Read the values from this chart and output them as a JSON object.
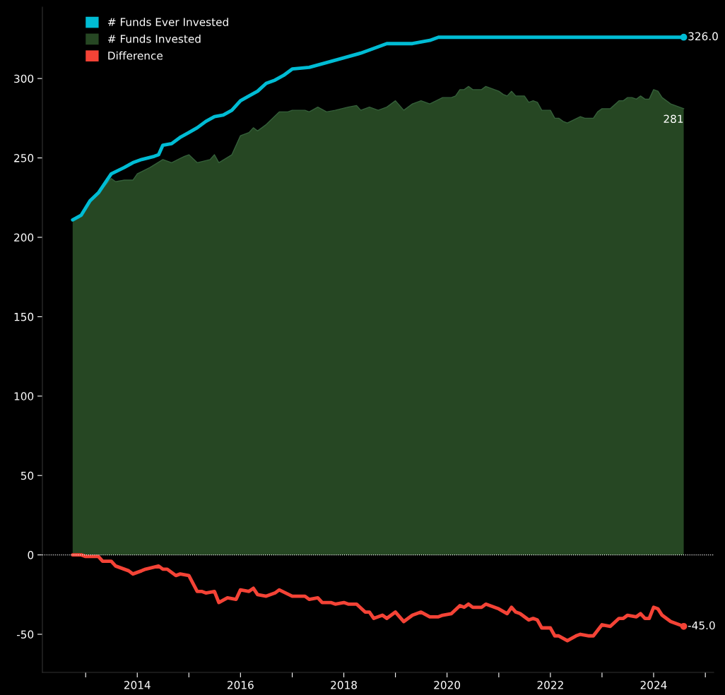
{
  "chart_data": {
    "type": "line",
    "legend": "top left",
    "grid": false,
    "marker": "none",
    "line_style": "solid",
    "xlim": [
      "2012-03",
      "2025-03"
    ],
    "xticks": [
      {
        "value": "2013",
        "label": null
      },
      {
        "value": "2014",
        "label": "2014"
      },
      {
        "value": "2015",
        "label": null
      },
      {
        "value": "2016",
        "label": "2016"
      },
      {
        "value": "2017",
        "label": null
      },
      {
        "value": "2018",
        "label": "2018"
      },
      {
        "value": "2019",
        "label": null
      },
      {
        "value": "2020",
        "label": "2020"
      },
      {
        "value": "2021",
        "label": null
      },
      {
        "value": "2022",
        "label": "2022"
      },
      {
        "value": "2023",
        "label": null
      },
      {
        "value": "2024",
        "label": "2024"
      },
      {
        "value": "2025",
        "label": null
      }
    ],
    "ylim": [
      -74,
      345
    ],
    "yticks": [
      -50,
      0,
      50,
      100,
      150,
      200,
      250,
      300
    ],
    "ref_lines": [
      {
        "axis": "y",
        "value": 0,
        "label": null,
        "color": "#ffffff",
        "line_style": "dotted"
      }
    ],
    "series": [
      {
        "name": "# Funds Invested",
        "type": "area",
        "color": "#264723",
        "x": [
          "2012-10",
          "2012-12",
          "2013-02",
          "2013-04",
          "2013-06",
          "2013-07",
          "2013-08",
          "2013-10",
          "2013-12",
          "2014-01",
          "2014-04",
          "2014-07",
          "2014-09",
          "2014-12",
          "2015-01",
          "2015-03",
          "2015-06",
          "2015-07",
          "2015-08",
          "2015-11",
          "2016-01",
          "2016-03",
          "2016-04",
          "2016-05",
          "2016-07",
          "2016-10",
          "2016-12",
          "2017-01",
          "2017-04",
          "2017-05",
          "2017-07",
          "2017-09",
          "2017-11",
          "2018-02",
          "2018-04",
          "2018-05",
          "2018-07",
          "2018-09",
          "2018-11",
          "2019-01",
          "2019-03",
          "2019-05",
          "2019-07",
          "2019-09",
          "2019-12",
          "2020-02",
          "2020-03",
          "2020-04",
          "2020-05",
          "2020-06",
          "2020-07",
          "2020-09",
          "2020-10",
          "2021-01",
          "2021-02",
          "2021-03",
          "2021-04",
          "2021-05",
          "2021-07",
          "2021-08",
          "2021-09",
          "2021-10",
          "2021-11",
          "2022-01",
          "2022-02",
          "2022-03",
          "2022-04",
          "2022-05",
          "2022-08",
          "2022-09",
          "2022-11",
          "2022-12",
          "2023-01",
          "2023-03",
          "2023-05",
          "2023-06",
          "2023-07",
          "2023-08",
          "2023-09",
          "2023-10",
          "2023-11",
          "2023-12",
          "2024-01",
          "2024-02",
          "2024-03",
          "2024-05",
          "2024-06",
          "2024-08"
        ],
        "values": [
          211,
          214,
          222,
          228,
          234,
          237,
          235,
          236,
          236,
          240,
          244,
          249,
          247,
          251,
          252,
          247,
          249,
          252,
          247,
          252,
          264,
          266,
          269,
          267,
          271,
          279,
          279,
          280,
          280,
          279,
          282,
          279,
          280,
          282,
          283,
          280,
          282,
          280,
          282,
          286,
          280,
          284,
          286,
          284,
          288,
          288,
          289,
          293,
          293,
          295,
          293,
          293,
          295,
          292,
          290,
          289,
          292,
          289,
          289,
          285,
          286,
          285,
          280,
          280,
          275,
          275,
          273,
          272,
          276,
          275,
          275,
          279,
          281,
          281,
          286,
          286,
          288,
          288,
          287,
          289,
          287,
          287,
          293,
          292,
          288,
          284,
          283,
          281
        ]
      },
      {
        "name": "# Funds Ever Invested",
        "color": "#00bcd4",
        "x": [
          "2012-10",
          "2012-12",
          "2013-02",
          "2013-04",
          "2013-07",
          "2013-10",
          "2013-12",
          "2014-02",
          "2014-05",
          "2014-06",
          "2014-07",
          "2014-09",
          "2014-11",
          "2015-01",
          "2015-03",
          "2015-05",
          "2015-07",
          "2015-09",
          "2015-11",
          "2016-01",
          "2016-03",
          "2016-05",
          "2016-07",
          "2016-09",
          "2016-11",
          "2017-01",
          "2017-05",
          "2017-09",
          "2018-01",
          "2018-05",
          "2018-09",
          "2018-11",
          "2019-05",
          "2019-09",
          "2019-11",
          "2024-08"
        ],
        "values": [
          211,
          214,
          223,
          228,
          240,
          244,
          247,
          249,
          251,
          252,
          258,
          259,
          263,
          266,
          269,
          273,
          276,
          277,
          280,
          286,
          289,
          292,
          297,
          299,
          302,
          306,
          307,
          310,
          313,
          316,
          320,
          322,
          322,
          324,
          326,
          326
        ]
      },
      {
        "name": "Difference",
        "color": "#f44336",
        "x": [
          "2012-10",
          "2012-12",
          "2013-01",
          "2013-04",
          "2013-05",
          "2013-07",
          "2013-08",
          "2013-11",
          "2013-12",
          "2014-02",
          "2014-03",
          "2014-06",
          "2014-07",
          "2014-08",
          "2014-10",
          "2014-11",
          "2015-01",
          "2015-03",
          "2015-04",
          "2015-05",
          "2015-07",
          "2015-08",
          "2015-10",
          "2015-12",
          "2016-01",
          "2016-03",
          "2016-04",
          "2016-05",
          "2016-07",
          "2016-09",
          "2016-10",
          "2017-01",
          "2017-04",
          "2017-05",
          "2017-07",
          "2017-08",
          "2017-10",
          "2017-11",
          "2018-01",
          "2018-02",
          "2018-04",
          "2018-06",
          "2018-07",
          "2018-08",
          "2018-10",
          "2018-11",
          "2019-01",
          "2019-03",
          "2019-05",
          "2019-07",
          "2019-09",
          "2019-11",
          "2019-12",
          "2020-02",
          "2020-04",
          "2020-05",
          "2020-06",
          "2020-07",
          "2020-09",
          "2020-10",
          "2021-01",
          "2021-03",
          "2021-04",
          "2021-05",
          "2021-06",
          "2021-08",
          "2021-09",
          "2021-10",
          "2021-11",
          "2022-01",
          "2022-02",
          "2022-03",
          "2022-05",
          "2022-07",
          "2022-08",
          "2022-10",
          "2022-11",
          "2023-01",
          "2023-03",
          "2023-05",
          "2023-06",
          "2023-07",
          "2023-09",
          "2023-10",
          "2023-11",
          "2023-12",
          "2024-01",
          "2024-02",
          "2024-03",
          "2024-05",
          "2024-08"
        ],
        "values": [
          0,
          0,
          -1,
          -1,
          -4,
          -4,
          -7,
          -10,
          -12,
          -10,
          -9,
          -7,
          -9,
          -9,
          -13,
          -12,
          -13,
          -23,
          -23,
          -24,
          -23,
          -30,
          -27,
          -28,
          -22,
          -23,
          -21,
          -25,
          -26,
          -24,
          -22,
          -26,
          -26,
          -28,
          -27,
          -30,
          -30,
          -31,
          -30,
          -31,
          -31,
          -36,
          -36,
          -40,
          -38,
          -40,
          -36,
          -42,
          -38,
          -36,
          -39,
          -39,
          -38,
          -37,
          -32,
          -33,
          -31,
          -33,
          -33,
          -31,
          -34,
          -37,
          -33,
          -36,
          -37,
          -41,
          -40,
          -41,
          -46,
          -46,
          -51,
          -51,
          -54,
          -51,
          -50,
          -51,
          -51,
          -44,
          -45,
          -40,
          -40,
          -38,
          -39,
          -37,
          -40,
          -40,
          -33,
          -34,
          -38,
          -42,
          -45
        ]
      }
    ],
    "annotations": [
      {
        "text": "326.0",
        "x": "2024-08",
        "y": 326
      },
      {
        "text": "281",
        "x": "2024-08",
        "y": 281
      },
      {
        "text": "-45.0",
        "x": "2024-08",
        "y": -45
      }
    ]
  }
}
